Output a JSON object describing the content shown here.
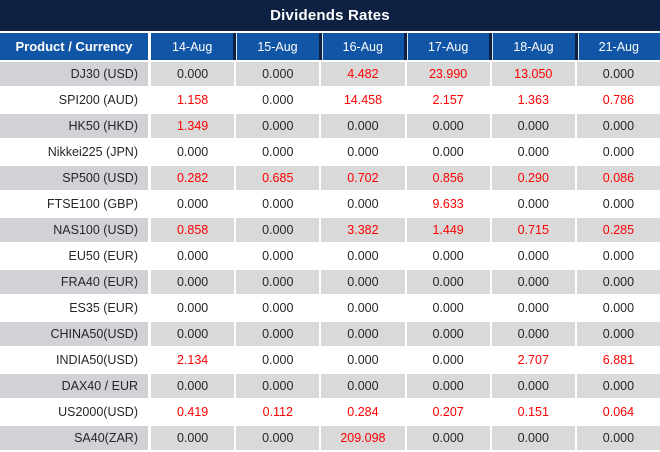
{
  "title": "Dividends Rates",
  "colors": {
    "title_bar": "#0E2143",
    "header_bg": "#1155A6",
    "row_stripe": "#D9D9D9",
    "label_stripe": "#D2D2D6",
    "value_red": "#FF0000",
    "value_black": "#262626"
  },
  "table": {
    "label_header": "Product / Currency",
    "date_headers": [
      "14-Aug",
      "15-Aug",
      "16-Aug",
      "17-Aug",
      "18-Aug",
      "21-Aug"
    ],
    "rows": [
      {
        "product": "DJ30 (USD)",
        "values": [
          "0.000",
          "0.000",
          "4.482",
          "23.990",
          "13.050",
          "0.000"
        ]
      },
      {
        "product": "SPI200 (AUD)",
        "values": [
          "1.158",
          "0.000",
          "14.458",
          "2.157",
          "1.363",
          "0.786"
        ]
      },
      {
        "product": "HK50 (HKD)",
        "values": [
          "1.349",
          "0.000",
          "0.000",
          "0.000",
          "0.000",
          "0.000"
        ]
      },
      {
        "product": "Nikkei225 (JPN)",
        "values": [
          "0.000",
          "0.000",
          "0.000",
          "0.000",
          "0.000",
          "0.000"
        ]
      },
      {
        "product": "SP500 (USD)",
        "values": [
          "0.282",
          "0.685",
          "0.702",
          "0.856",
          "0.290",
          "0.086"
        ]
      },
      {
        "product": "FTSE100 (GBP)",
        "values": [
          "0.000",
          "0.000",
          "0.000",
          "9.633",
          "0.000",
          "0.000"
        ]
      },
      {
        "product": "NAS100 (USD)",
        "values": [
          "0.858",
          "0.000",
          "3.382",
          "1.449",
          "0.715",
          "0.285"
        ]
      },
      {
        "product": "EU50 (EUR)",
        "values": [
          "0.000",
          "0.000",
          "0.000",
          "0.000",
          "0.000",
          "0.000"
        ]
      },
      {
        "product": "FRA40 (EUR)",
        "values": [
          "0.000",
          "0.000",
          "0.000",
          "0.000",
          "0.000",
          "0.000"
        ]
      },
      {
        "product": "ES35 (EUR)",
        "values": [
          "0.000",
          "0.000",
          "0.000",
          "0.000",
          "0.000",
          "0.000"
        ]
      },
      {
        "product": "CHINA50(USD)",
        "values": [
          "0.000",
          "0.000",
          "0.000",
          "0.000",
          "0.000",
          "0.000"
        ]
      },
      {
        "product": "INDIA50(USD)",
        "values": [
          "2.134",
          "0.000",
          "0.000",
          "0.000",
          "2.707",
          "6.881"
        ]
      },
      {
        "product": "DAX40 / EUR",
        "values": [
          "0.000",
          "0.000",
          "0.000",
          "0.000",
          "0.000",
          "0.000"
        ]
      },
      {
        "product": "US2000(USD)",
        "values": [
          "0.419",
          "0.112",
          "0.284",
          "0.207",
          "0.151",
          "0.064"
        ]
      },
      {
        "product": "SA40(ZAR)",
        "values": [
          "0.000",
          "0.000",
          "209.098",
          "0.000",
          "0.000",
          "0.000"
        ]
      }
    ]
  }
}
